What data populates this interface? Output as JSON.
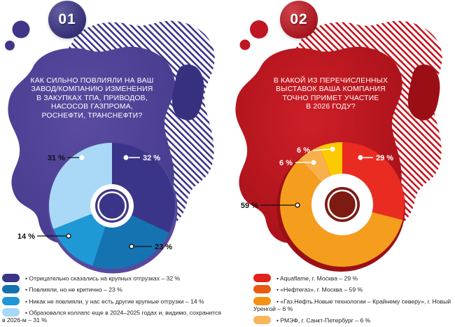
{
  "panels": [
    {
      "badge": "01",
      "question": "КАК СИЛЬНО ПОВЛИЯЛИ НА ВАШ\nЗАВОД/КОМПАНИЮ ИЗМЕНЕНИЯ\nВ ЗАКУПКАХ ТПА, ПРИВОДОВ,\nНАСОСОВ ГАЗПРОМА,\nРОСНЕФТИ, ТРАНСНЕФТИ?",
      "colors": {
        "primary": "#3b3589",
        "stripe": "#3b3589",
        "blob_center": "#5a4ba0",
        "blob_edge": "#453a8d",
        "kidney": "#37307f",
        "shadow_ring": "#564a9e",
        "hole_disc": "#3b3589",
        "badge": "#3b3589",
        "decor": "#3f3689"
      },
      "legend": {
        "items": [
          {
            "color": "#3b3589",
            "text": "• Отрицательно сказались на крупных отгрузках – 32 %"
          },
          {
            "color": "#1472b0",
            "text": "• Повлияли, но не критично – 23 %"
          },
          {
            "color": "#2196d6",
            "text": "• Никак не повлияли, у нас есть другие крупные отгрузки – 14 %"
          },
          {
            "color": "#a6d7f6",
            "text": "• Образовался коллапс еще в 2024–2025 годах и, видимо, сохранится в 2026-м – 31 %"
          }
        ]
      }
    },
    {
      "badge": "02",
      "question": "В КАКОЙ ИЗ ПЕРЕЧИСЛЕННЫХ\nВЫСТАВОК ВАША КОМПАНИЯ\nТОЧНО ПРИМЕТ УЧАСТИЕ\nВ 2026 ГОДУ?",
      "colors": {
        "primary": "#c3151f",
        "stripe": "#c3151f",
        "blob_center": "#ce1f27",
        "blob_edge": "#a30f18",
        "kidney": "#9c0e15",
        "shadow_ring": "#9a1016",
        "hole_disc": "#7d1a12",
        "badge": "#c3151f",
        "decor": "#c01623"
      },
      "legend": {
        "items": [
          {
            "color": "#e3211c",
            "text": "• Aquaflame, г. Москва – 29 %"
          },
          {
            "color": "#e85a10",
            "text": "• «Нефтегаз», г. Москва – 59 %"
          },
          {
            "color": "#f39114",
            "text": "• «Газ.Нефть.Новые технологии – Крайнему северу», г. Новый Уренгой – 6 %"
          },
          {
            "color": "#f7b55c",
            "text": "• РМЭФ, г. Санкт-Петербург – 6 %"
          }
        ]
      }
    }
  ],
  "chart_data": [
    {
      "type": "pie",
      "subtype": "donut",
      "title": "Как сильно повлияли на ваш завод/компанию изменения в закупках ТПА, приводов, насосов Газпрома, Роснефти, Транснефти?",
      "unit": "%",
      "start_angle_deg": 0,
      "direction": "clockwise",
      "slices": [
        {
          "label": "Отрицательно сказались на крупных отгрузках",
          "value": 32,
          "display": "32 %",
          "color": "#3b3589"
        },
        {
          "label": "Повлияли, но не критично",
          "value": 23,
          "display": "23 %",
          "color": "#1573b2"
        },
        {
          "label": "Никак не повлияли, у нас есть другие крупные отгрузки",
          "value": 14,
          "display": "14 %",
          "color": "#1f99d5"
        },
        {
          "label": "Образовался коллапс еще в 2024–2025 годах и, видимо, сохранится в 2026-м",
          "value": 31,
          "display": "31 %",
          "color": "#a9d9f7"
        }
      ]
    },
    {
      "type": "pie",
      "subtype": "donut",
      "title": "В какой из перечисленных выставок ваша компания точно примет участие в 2026 году?",
      "unit": "%",
      "start_angle_deg": 0,
      "direction": "clockwise",
      "slices": [
        {
          "label": "Aquaflame, г. Москва",
          "value": 29,
          "display": "29 %",
          "color": "#ea2b22"
        },
        {
          "label": "«Нефтегаз», г. Москва",
          "value": 59,
          "display": "59 %",
          "color": "#f59d1c"
        },
        {
          "label": "«Газ.Нефть.Новые технологии – Крайнему северу», г. Новый Уренгой",
          "value": 6,
          "display": "6 %",
          "color": "#f8b04a"
        },
        {
          "label": "РМЭФ, г. Санкт-Петербург",
          "value": 6,
          "display": "6 %",
          "color": "#fcca00"
        }
      ]
    }
  ]
}
